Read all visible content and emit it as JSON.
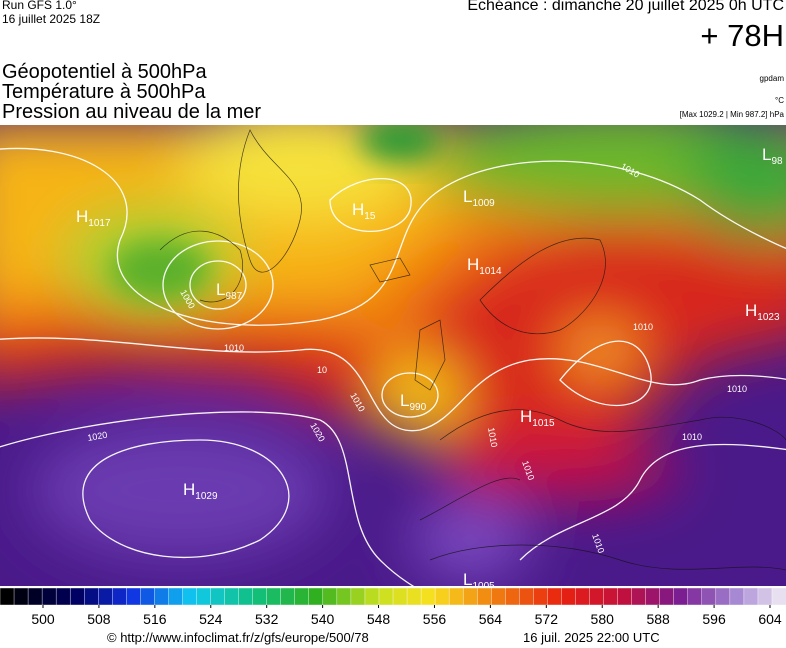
{
  "header": {
    "run": "Run GFS 1.0°",
    "run_date": "16 juillet 2025 18Z",
    "valid": "Echéance : dimanche 20 juillet 2025 0h UTC",
    "lead": "+ 78H"
  },
  "titles": [
    "Géopotentiel à 500hPa",
    "Température à 500hPa",
    "Pression au niveau de la mer"
  ],
  "units": [
    "gpdam",
    "°C",
    "[Max 1029.2 | Min 987.2] hPa"
  ],
  "centers": [
    {
      "label": "H",
      "value": "1017"
    },
    {
      "label": "H",
      "value": "15"
    },
    {
      "label": "L",
      "value": "1009"
    },
    {
      "label": "L",
      "value": "987"
    },
    {
      "label": "H",
      "value": "1014"
    },
    {
      "label": "H",
      "value": "1023"
    },
    {
      "label": "L",
      "value": "990"
    },
    {
      "label": "H",
      "value": "1015"
    },
    {
      "label": "H",
      "value": "1029"
    },
    {
      "label": "L",
      "value": "1005"
    },
    {
      "label": "L",
      "value": "98"
    }
  ],
  "isobar_labels": [
    "1010",
    "1010",
    "1010",
    "1010",
    "1010",
    "1010",
    "1000",
    "1020",
    "1020",
    "1010",
    "1010",
    "1010",
    "10"
  ],
  "colorbar_ticks": [
    500,
    508,
    516,
    524,
    532,
    540,
    548,
    556,
    564,
    572,
    580,
    588,
    596,
    604
  ],
  "footer": {
    "source": "© http://www.infoclimat.fr/z/gfs/europe/500/78",
    "timestamp": "16 juil. 2025 22:00 UTC"
  }
}
